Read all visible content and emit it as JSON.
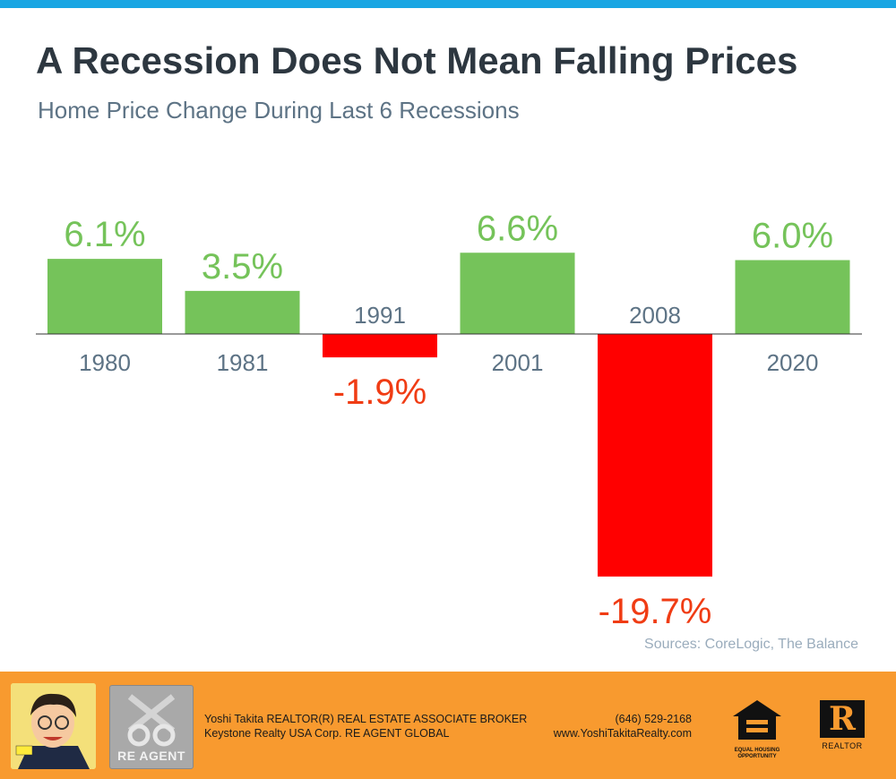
{
  "header": {
    "title": "A Recession Does Not Mean Falling Prices",
    "subtitle": "Home Price Change During Last 6 Recessions"
  },
  "source": "Sources: CoreLogic, The Balance",
  "chart_data": {
    "type": "bar",
    "title": "A Recession Does Not Mean Falling Prices",
    "subtitle": "Home Price Change During Last 6 Recessions",
    "categories": [
      "1980",
      "1981",
      "1991",
      "2001",
      "2008",
      "2020"
    ],
    "values": [
      6.1,
      3.5,
      -1.9,
      6.6,
      -19.7,
      6.0
    ],
    "value_labels": [
      "6.1%",
      "3.5%",
      "-1.9%",
      "6.6%",
      "-19.7%",
      "6.0%"
    ],
    "unit": "%",
    "ylim": [
      -19.7,
      6.6
    ],
    "grid": false,
    "legend": "none",
    "colors": {
      "positive_bar": "#75c35a",
      "negative_bar": "#ff0000",
      "positive_label": "#75c35a",
      "negative_label": "#f03c14",
      "category_label": "#5d7385"
    }
  },
  "footer": {
    "agent_line": "Yoshi Takita REALTOR(R) REAL ESTATE ASSOCIATE BROKER",
    "company_line": "Keystone Realty USA Corp.  RE AGENT GLOBAL",
    "phone": "(646) 529-2168",
    "website": "www.YoshiTakitaRealty.com",
    "logo_text": "RE AGENT",
    "eho_text": "EQUAL HOUSING OPPORTUNITY",
    "realtor_text": "REALTOR"
  },
  "colors": {
    "top_bar": "#1aa6e3",
    "footer_bg": "#f89a2f",
    "title": "#2d3740"
  }
}
